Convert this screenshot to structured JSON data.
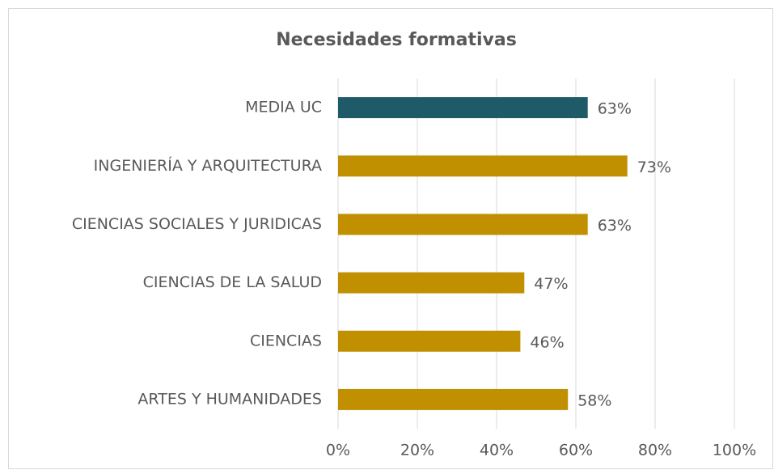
{
  "chart_data": {
    "type": "hbar",
    "title": "Necesidades formativas",
    "categories": [
      "MEDIA UC",
      "INGENIERÍA Y ARQUITECTURA",
      "CIENCIAS SOCIALES Y JURIDICAS",
      "CIENCIAS DE LA SALUD",
      "CIENCIAS",
      "ARTES Y HUMANIDADES"
    ],
    "values": [
      63,
      73,
      63,
      47,
      46,
      58
    ],
    "value_labels": [
      "63%",
      "73%",
      "63%",
      "47%",
      "46%",
      "58%"
    ],
    "colors": [
      "#1f5a68",
      "#c09000",
      "#c09000",
      "#c09000",
      "#c09000",
      "#c09000"
    ],
    "xlim": [
      0,
      100
    ],
    "xticks": [
      {
        "value": 0,
        "label": "0%"
      },
      {
        "value": 20,
        "label": "20%"
      },
      {
        "value": 40,
        "label": "40%"
      },
      {
        "value": 60,
        "label": "60%"
      },
      {
        "value": 80,
        "label": "80%"
      },
      {
        "value": 100,
        "label": "100%"
      }
    ],
    "grid": true
  }
}
